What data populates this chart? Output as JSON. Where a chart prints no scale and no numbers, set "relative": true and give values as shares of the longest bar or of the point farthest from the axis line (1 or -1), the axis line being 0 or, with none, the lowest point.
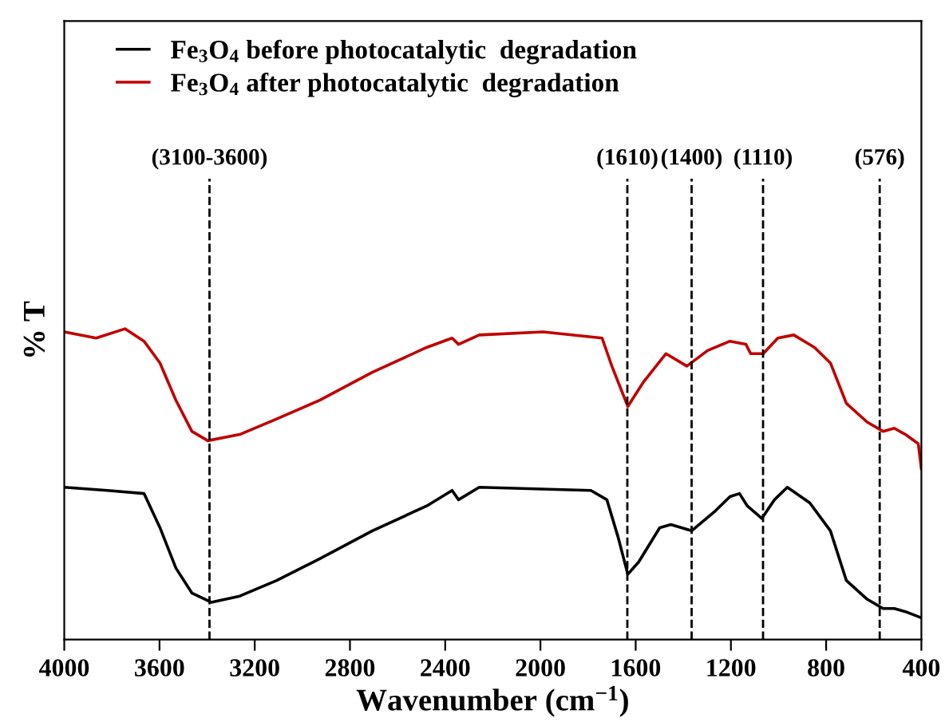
{
  "chart_data": {
    "type": "line",
    "relative": true,
    "xlabel": "Wavenumber (cm$^{−1}$)",
    "ylabel": "% T",
    "xlim": [
      4000,
      400
    ],
    "xticks": [
      4000,
      3600,
      3200,
      2800,
      2400,
      2000,
      1600,
      1200,
      800,
      400
    ],
    "grid": false,
    "legend": "top left",
    "marker": "none",
    "line_style": "solid",
    "series": [
      {
        "name": "Fe$_{3}$O$_{4}$ before photocatalytic  degradation",
        "color": "#000000",
        "x": [
          4000,
          3819,
          3665,
          3598,
          3531,
          3464,
          3383,
          3263,
          3108,
          2927,
          2706,
          2478,
          2371,
          2344,
          2257,
          1788,
          1721,
          1674,
          1633,
          1587,
          1499,
          1452,
          1365,
          1271,
          1204,
          1164,
          1131,
          1070,
          1017,
          963,
          869,
          782,
          715,
          628,
          561,
          514,
          467,
          400
        ],
        "values": [
          0.49,
          0.48,
          0.47,
          0.36,
          0.23,
          0.15,
          0.12,
          0.14,
          0.19,
          0.26,
          0.35,
          0.43,
          0.48,
          0.45,
          0.49,
          0.48,
          0.45,
          0.33,
          0.21,
          0.25,
          0.36,
          0.37,
          0.35,
          0.41,
          0.46,
          0.47,
          0.43,
          0.39,
          0.45,
          0.49,
          0.44,
          0.35,
          0.19,
          0.13,
          0.1,
          0.1,
          0.09,
          0.07
        ]
      },
      {
        "name": "Fe$_{3}$O$_{4}$ after photocatalytic  degradation",
        "color": "#c00000",
        "x": [
          4000,
          3866,
          3745,
          3665,
          3598,
          3531,
          3464,
          3397,
          3263,
          3108,
          2927,
          2706,
          2478,
          2371,
          2344,
          2257,
          1989,
          1741,
          1700,
          1633,
          1566,
          1473,
          1385,
          1298,
          1204,
          1137,
          1117,
          1064,
          1003,
          936,
          849,
          782,
          715,
          628,
          561,
          514,
          467,
          413,
          400
        ],
        "values": [
          0.99,
          0.97,
          1.0,
          0.96,
          0.89,
          0.77,
          0.67,
          0.64,
          0.66,
          0.71,
          0.77,
          0.86,
          0.94,
          0.97,
          0.95,
          0.98,
          0.99,
          0.97,
          0.88,
          0.75,
          0.83,
          0.92,
          0.88,
          0.93,
          0.96,
          0.95,
          0.92,
          0.92,
          0.97,
          0.98,
          0.94,
          0.89,
          0.76,
          0.7,
          0.67,
          0.68,
          0.66,
          0.63,
          0.55
        ]
      }
    ],
    "annotations": [
      "(3100-3600)",
      "(1610)",
      "(1400)",
      "(1110)",
      "(576)"
    ],
    "ref_lines": [
      {
        "axis": "x",
        "value": 3390,
        "line_style": "dashed"
      },
      {
        "axis": "x",
        "value": 1635,
        "line_style": "dashed"
      },
      {
        "axis": "x",
        "value": 1365,
        "line_style": "dashed"
      },
      {
        "axis": "x",
        "value": 1065,
        "line_style": "dashed"
      },
      {
        "axis": "x",
        "value": 575,
        "line_style": "dashed"
      }
    ]
  }
}
